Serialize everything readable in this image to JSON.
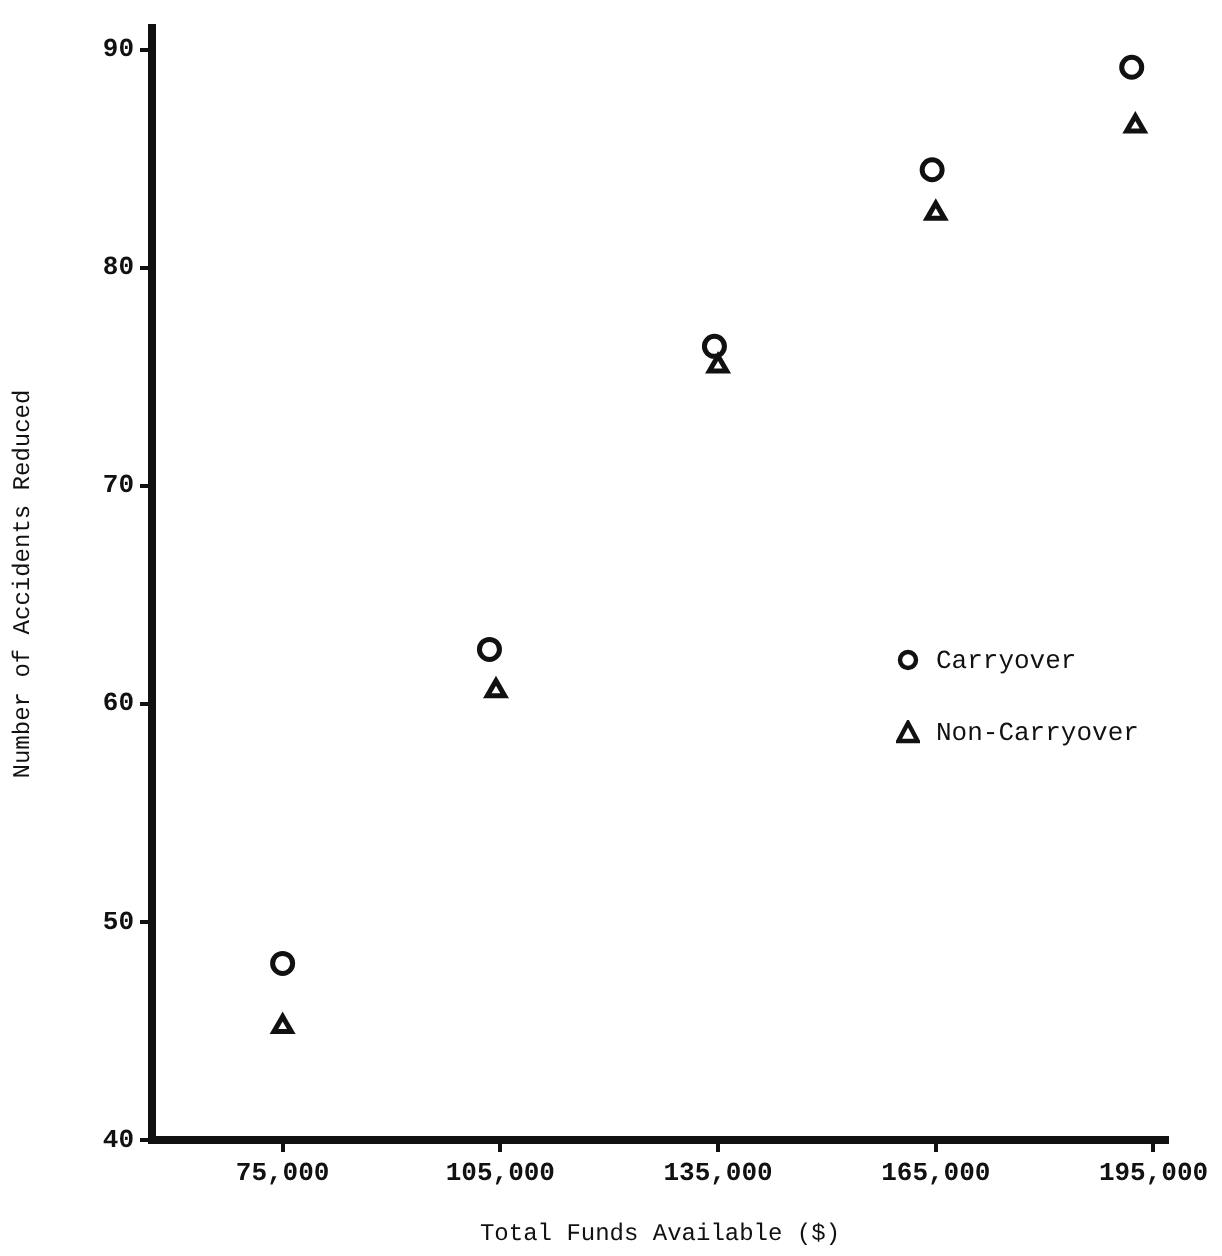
{
  "chart_data": {
    "type": "scatter",
    "xlabel": "Total Funds Available ($)",
    "ylabel": "Number of Accidents Reduced",
    "xlim": [
      57000,
      197000
    ],
    "xticks": [
      {
        "value": 75000,
        "label": "75,000"
      },
      {
        "value": 105000,
        "label": "105,000"
      },
      {
        "value": 135000,
        "label": "135,000"
      },
      {
        "value": 165000,
        "label": "165,000"
      },
      {
        "value": 195000,
        "label": "195,000"
      }
    ],
    "ylim": [
      40,
      91
    ],
    "yticks": [
      40,
      50,
      60,
      70,
      80,
      90
    ],
    "grid": false,
    "legend": "right",
    "series": [
      {
        "name": "Carryover",
        "color": "#111111",
        "marker": "circle",
        "x": [
          75000,
          103500,
          134500,
          164500,
          192000
        ],
        "values": [
          48.1,
          62.5,
          76.4,
          84.5,
          89.2
        ]
      },
      {
        "name": "Non-Carryover",
        "color": "#111111",
        "marker": "triangle",
        "x": [
          75000,
          104400,
          135000,
          165000,
          192500
        ],
        "values": [
          45.2,
          60.6,
          75.5,
          82.5,
          86.5
        ]
      }
    ]
  }
}
